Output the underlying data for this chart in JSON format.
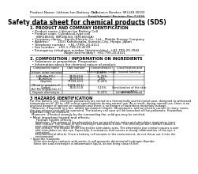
{
  "title": "Safety data sheet for chemical products (SDS)",
  "header_left": "Product Name: Lithium Ion Battery Cell",
  "header_right": "Substance Number: SRI-049-00010\nEstablishment / Revision: Dec.7.2018",
  "section1_title": "1. PRODUCT AND COMPANY IDENTIFICATION",
  "section1_lines": [
    "  • Product name: Lithium Ion Battery Cell",
    "  • Product code: Cylindrical-type cell",
    "      (INR18650J, INR18650J, INR18650A)",
    "  • Company name:   Sanyo Electric Co., Ltd.,  Mobile Energy Company",
    "  • Address:         2001 Kamikosaka, Sumoto-City, Hyogo, Japan",
    "  • Telephone number:  +81-(799)-20-4111",
    "  • Fax number:   +81-1-799-20-4129",
    "  • Emergency telephone number (daytime/day): +81-799-20-3942",
    "                                  (Night and holiday): +81-799-20-4101"
  ],
  "section2_title": "2. COMPOSITION / INFORMATION ON INGREDIENTS",
  "section2_lines": [
    "  • Substance or preparation: Preparation",
    "  • Information about the chemical nature of product:"
  ],
  "table_headers": [
    "Component name",
    "CAS number",
    "Concentration /\nConcentration range",
    "Classification and\nhazard labeling"
  ],
  "table_rows": [
    [
      "Lithium oxide-tantalate\n(LiMn₂Co₂RO₂)",
      "-",
      "30-60%",
      ""
    ],
    [
      "Iron",
      "7439-89-6",
      "15-25%",
      ""
    ],
    [
      "Aluminum",
      "7429-90-5",
      "2-8%",
      ""
    ],
    [
      "Graphite\n(Metal in graphite-1)\n(Al+Mn in graphite-1)",
      "77769-43-5\n(7429-43-2)",
      "10-20%",
      ""
    ],
    [
      "Copper",
      "7440-50-8",
      "5-15%",
      "Sensitization of the skin\ngroup R4.2"
    ],
    [
      "Organic electrolyte",
      "-",
      "10-20%",
      "Inflammable liquid"
    ]
  ],
  "section3_title": "3 HAZARDS IDENTIFICATION",
  "section3_text": [
    "For this battery cell, chemical substances are stored in a hermetically sealed metal case, designed to withstand",
    "temperatures of -20 to +60 celsius-specifications during normal use. As a result, during normal use, there is no",
    "physical danger of ignition or explosion and there is no danger of hazardous materials leakage.",
    "  However, if exposed to a fire, added mechanical shocks, decomposes, and an electric current in many cases,",
    "the gas release vent will be operated. The battery cell case will be breached of flue-pollutants. Hazardous",
    "materials may be released.",
    "  Moreover, if heated strongly by the surrounding fire, solid gas may be emitted."
  ],
  "section3_bullet1": "• Most important hazard and effects:",
  "section3_human": "    Human health effects:",
  "section3_human_text": [
    "      Inhalation: The release of the electrolyte has an anesthetics action and stimulates respiratory tract.",
    "      Skin contact: The release of the electrolyte stimulates a skin. The electrolyte skin contact causes a",
    "      sore and stimulation on the skin.",
    "      Eye contact: The release of the electrolyte stimulates eyes. The electrolyte eye contact causes a sore",
    "      and stimulation on the eye. Especially, a substance that causes a strong inflammation of the eye is",
    "      contained.",
    "      Environmental effects: Since a battery cell remains in the environment, do not throw out it into the",
    "      environment."
  ],
  "section3_bullet2": "• Specific hazards:",
  "section3_specific_text": [
    "    If the electrolyte contacts with water, it will generate detrimental hydrogen fluoride.",
    "    Since the seal-electrolyte is inflammable liquid, do not bring close to fire."
  ],
  "bg_color": "#ffffff",
  "text_color": "#000000",
  "line_color": "#000000",
  "font_size_title": 5.5,
  "font_size_header": 3.2,
  "font_size_body": 3.0,
  "font_size_section": 3.6
}
